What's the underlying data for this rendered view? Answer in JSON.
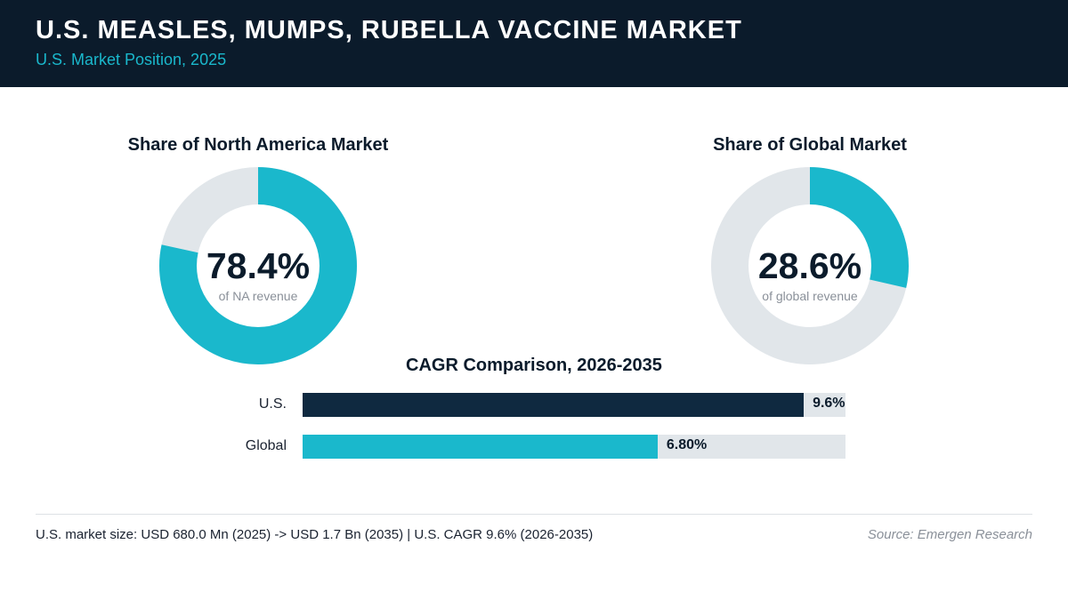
{
  "header": {
    "title": "U.S. MEASLES, MUMPS, RUBELLA VACCINE MARKET",
    "subtitle": "U.S. Market Position, 2025"
  },
  "colors": {
    "header_bg": "#0b1b2b",
    "accent_teal": "#1ab8cc",
    "navy": "#0f2940",
    "track_gray": "#e1e6ea"
  },
  "chart_data": [
    {
      "type": "pie",
      "title": "Share of North America Market",
      "value_label": "78.4%",
      "caption": "of NA revenue",
      "categories": [
        "U.S.",
        "Rest"
      ],
      "values": [
        78.4,
        21.6
      ]
    },
    {
      "type": "pie",
      "title": "Share of Global Market",
      "value_label": "28.6%",
      "caption": "of global revenue",
      "categories": [
        "U.S.",
        "Rest"
      ],
      "values": [
        28.6,
        71.4
      ]
    },
    {
      "type": "bar",
      "title": "CAGR Comparison, 2026-2035",
      "categories": [
        "U.S.",
        "Global"
      ],
      "values": [
        9.6,
        6.8
      ],
      "value_labels": [
        "9.6%",
        "6.80%"
      ],
      "xlim": [
        0,
        10.4
      ]
    }
  ],
  "footer": {
    "note": "U.S. market size: USD 680.0 Mn (2025) -> USD 1.7 Bn (2035)  |  U.S. CAGR 9.6% (2026-2035)",
    "source": "Source: Emergen Research"
  }
}
